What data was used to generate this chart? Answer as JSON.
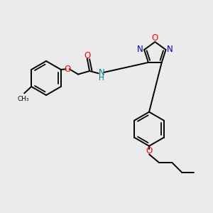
{
  "bg_color": "#ebebeb",
  "line_color": "#000000",
  "o_color": "#ff0000",
  "n_color": "#0000cc",
  "nh_color": "#008080",
  "figsize": [
    3.0,
    3.0
  ],
  "dpi": 100,
  "xlim": [
    0,
    9
  ],
  "ylim": [
    0,
    9
  ]
}
